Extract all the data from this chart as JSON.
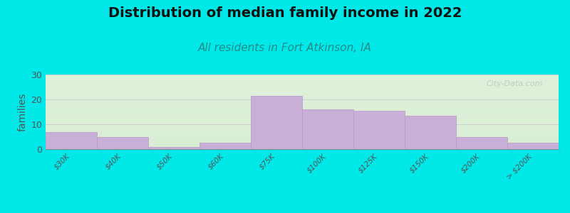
{
  "title": "Distribution of median family income in 2022",
  "subtitle": "All residents in Fort Atkinson, IA",
  "ylabel": "families",
  "categories": [
    "$30K",
    "$40K",
    "$50K",
    "$60K",
    "$75K",
    "$100K",
    "$125K",
    "$150K",
    "$200K",
    "> $200K"
  ],
  "values": [
    7.0,
    5.0,
    1.0,
    2.5,
    21.5,
    16.0,
    15.5,
    13.5,
    5.0,
    2.5
  ],
  "bar_color": "#c9aed8",
  "bar_edge_color": "#b898c8",
  "ylim": [
    0,
    30
  ],
  "yticks": [
    0,
    10,
    20,
    30
  ],
  "bg_outer": "#00e8e8",
  "bg_plot_color1": "#c8e8c0",
  "bg_plot_color2": "#f0f8f0",
  "bg_plot_color3": "#f8f8f4",
  "title_fontsize": 14,
  "subtitle_fontsize": 11,
  "subtitle_color": "#2a8a8a",
  "ylabel_fontsize": 10,
  "ytick_fontsize": 9,
  "xtick_fontsize": 7.5,
  "watermark": "City-Data.com"
}
